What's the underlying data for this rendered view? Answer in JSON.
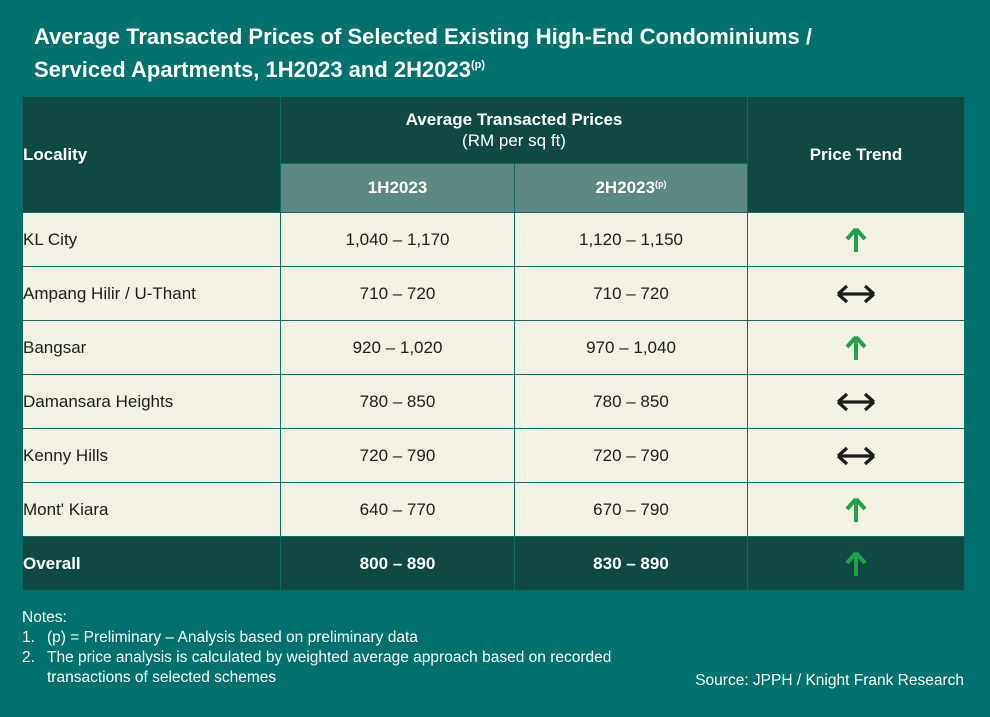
{
  "title": {
    "line1": "Average Transacted Prices of Selected Existing High-End Condominiums /",
    "line2": "Serviced Apartments, 1H2023 and 2H2023",
    "line2_sup": "(p)"
  },
  "header": {
    "locality": "Locality",
    "group_title": "Average Transacted Prices",
    "group_unit": "(RM per sq ft)",
    "col1": "1H2023",
    "col2": "2H2023",
    "col2_sup": "(p)",
    "trend": "Price Trend"
  },
  "chart_data": {
    "type": "table",
    "columns": [
      "Locality",
      "1H2023",
      "2H2023(p)",
      "Price Trend"
    ],
    "rows": [
      {
        "locality": "KL City",
        "h1": "1,040 – 1,170",
        "h2": "1,120 – 1,150",
        "trend": "up"
      },
      {
        "locality": "Ampang Hilir / U-Thant",
        "h1": "710 – 720",
        "h2": "710 – 720",
        "trend": "flat"
      },
      {
        "locality": "Bangsar",
        "h1": "920 – 1,020",
        "h2": "970 – 1,040",
        "trend": "up"
      },
      {
        "locality": "Damansara Heights",
        "h1": "780 – 850",
        "h2": "780 – 850",
        "trend": "flat"
      },
      {
        "locality": "Kenny Hills",
        "h1": "720 – 790",
        "h2": "720 – 790",
        "trend": "flat"
      },
      {
        "locality": "Mont' Kiara",
        "h1": "640 – 770",
        "h2": "670 – 790",
        "trend": "up"
      },
      {
        "locality": "Overall",
        "h1": "800 – 890",
        "h2": "830 – 890",
        "trend": "up"
      }
    ]
  },
  "colors": {
    "background": "#00716c",
    "header_dark": "#0e4a43",
    "header_sub": "#5c8782",
    "row_bg": "#f2f1e4",
    "arrow_up": "#1fa24a",
    "arrow_flat": "#1d1d1d"
  },
  "notes": {
    "heading": "Notes:",
    "items": [
      {
        "num": "1.",
        "text": "(p) = Preliminary – Analysis based on preliminary data"
      },
      {
        "num": "2.",
        "text": "The price analysis is calculated by weighted average approach based on recorded transactions of selected schemes"
      }
    ]
  },
  "source": "Source: JPPH / Knight Frank Research"
}
